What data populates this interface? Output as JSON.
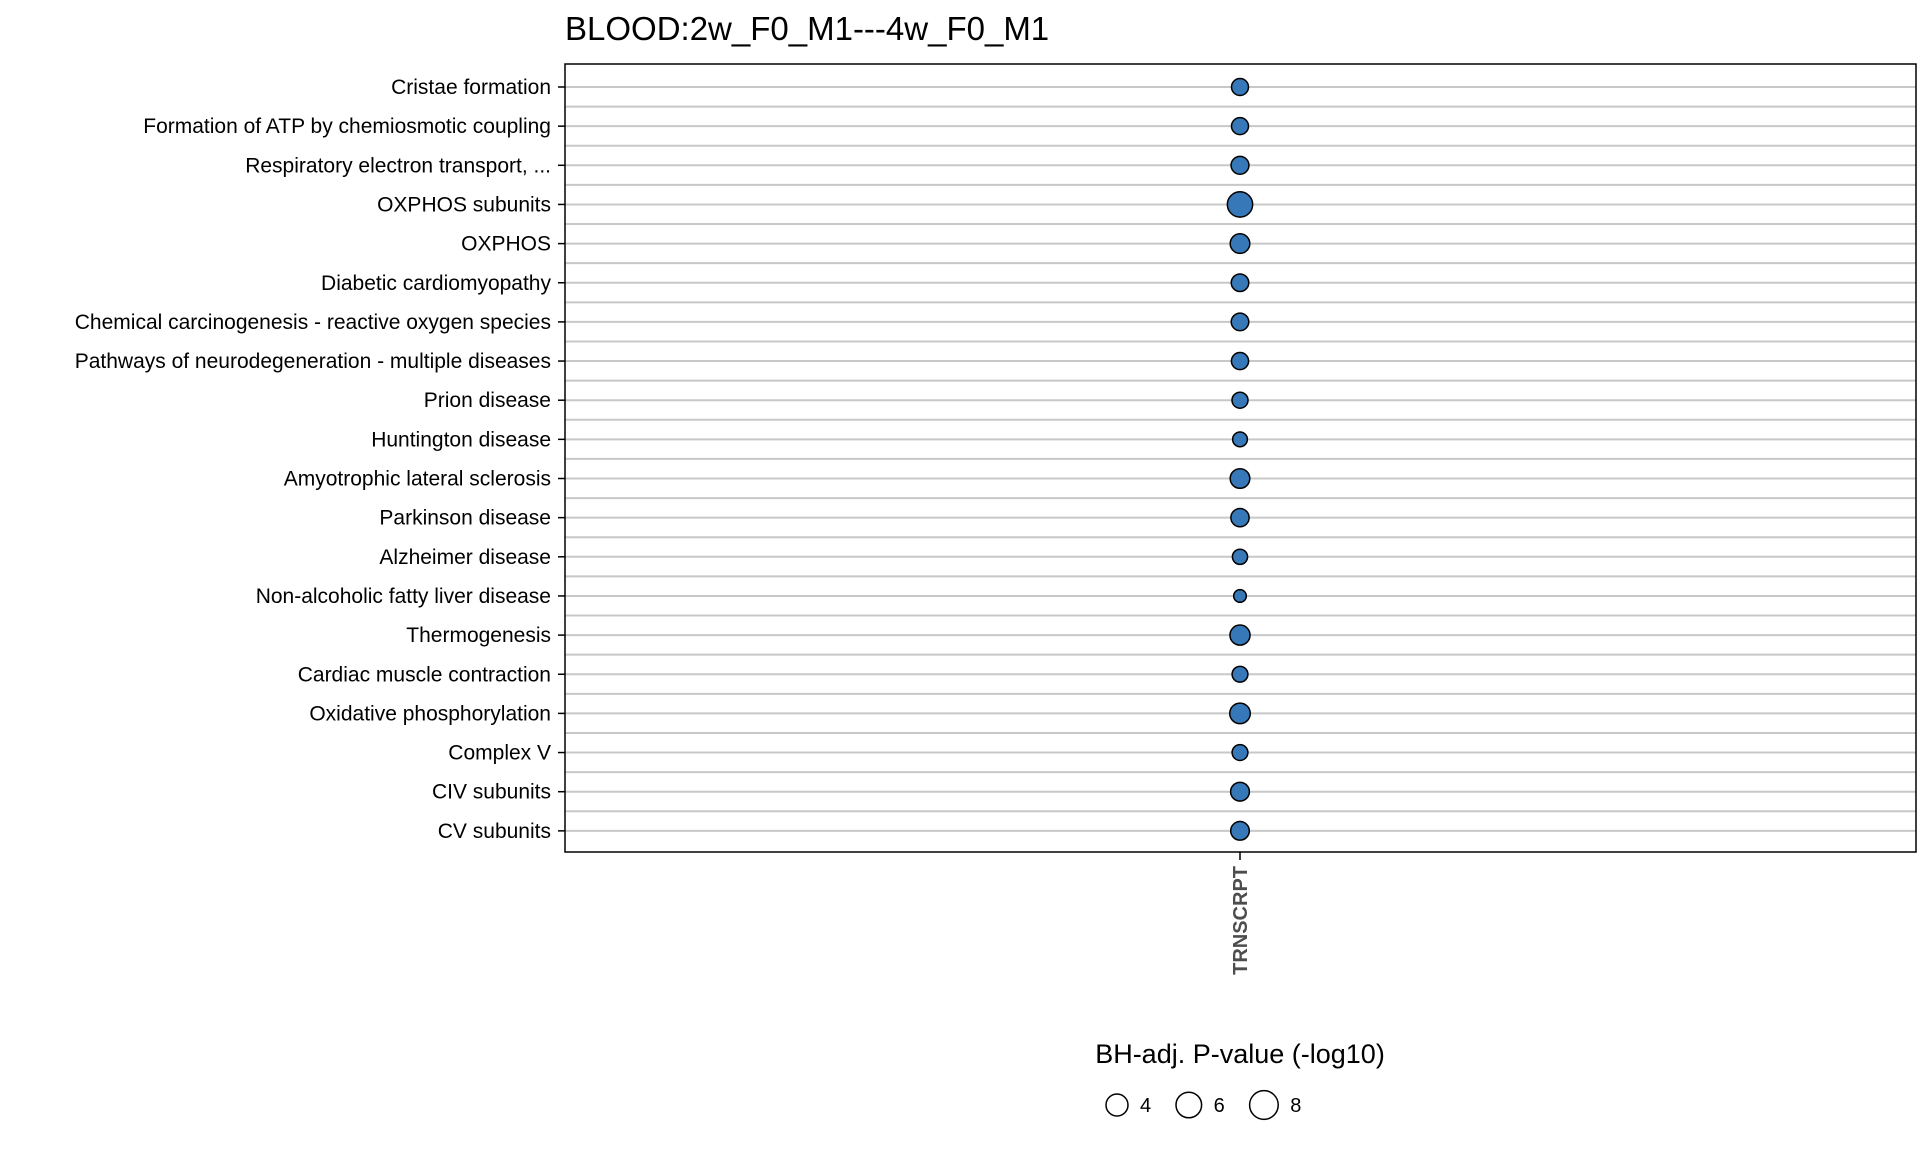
{
  "chart_data": {
    "type": "scatter",
    "title": "BLOOD:2w_F0_M1---4w_F0_M1",
    "x_categories": [
      "TRNSCRPT"
    ],
    "y_categories": [
      "Cristae formation",
      "Formation of ATP by chemiosmotic coupling",
      "Respiratory electron transport, ...",
      "OXPHOS subunits",
      "OXPHOS",
      "Diabetic cardiomyopathy",
      "Chemical carcinogenesis - reactive oxygen species",
      "Pathways of neurodegeneration - multiple diseases",
      "Prion disease",
      "Huntington disease",
      "Amyotrophic lateral sclerosis",
      "Parkinson disease",
      "Alzheimer disease",
      "Non-alcoholic fatty liver disease",
      "Thermogenesis",
      "Cardiac muscle contraction",
      "Oxidative phosphorylation",
      "Complex V",
      "CIV subunits",
      "CV subunits"
    ],
    "size_metric": "BH-adj. P-value (-log10)",
    "points": [
      {
        "x": "TRNSCRPT",
        "y": "Cristae formation",
        "size": 4.5
      },
      {
        "x": "TRNSCRPT",
        "y": "Formation of ATP by chemiosmotic coupling",
        "size": 4.5
      },
      {
        "x": "TRNSCRPT",
        "y": "Respiratory electron transport, ...",
        "size": 5.0
      },
      {
        "x": "TRNSCRPT",
        "y": "OXPHOS subunits",
        "size": 10.0
      },
      {
        "x": "TRNSCRPT",
        "y": "OXPHOS",
        "size": 6.0
      },
      {
        "x": "TRNSCRPT",
        "y": "Diabetic cardiomyopathy",
        "size": 4.8
      },
      {
        "x": "TRNSCRPT",
        "y": "Chemical carcinogenesis - reactive oxygen species",
        "size": 4.8
      },
      {
        "x": "TRNSCRPT",
        "y": "Pathways of neurodegeneration - multiple diseases",
        "size": 4.6
      },
      {
        "x": "TRNSCRPT",
        "y": "Prion disease",
        "size": 4.0
      },
      {
        "x": "TRNSCRPT",
        "y": "Huntington disease",
        "size": 3.4
      },
      {
        "x": "TRNSCRPT",
        "y": "Amyotrophic lateral sclerosis",
        "size": 6.0
      },
      {
        "x": "TRNSCRPT",
        "y": "Parkinson disease",
        "size": 5.2
      },
      {
        "x": "TRNSCRPT",
        "y": "Alzheimer disease",
        "size": 3.6
      },
      {
        "x": "TRNSCRPT",
        "y": "Non-alcoholic fatty liver disease",
        "size": 2.5
      },
      {
        "x": "TRNSCRPT",
        "y": "Thermogenesis",
        "size": 6.3
      },
      {
        "x": "TRNSCRPT",
        "y": "Cardiac muscle contraction",
        "size": 3.9
      },
      {
        "x": "TRNSCRPT",
        "y": "Oxidative phosphorylation",
        "size": 6.6
      },
      {
        "x": "TRNSCRPT",
        "y": "Complex V",
        "size": 3.9
      },
      {
        "x": "TRNSCRPT",
        "y": "CIV subunits",
        "size": 5.5
      },
      {
        "x": "TRNSCRPT",
        "y": "CV subunits",
        "size": 5.4
      }
    ],
    "legend": {
      "title": "BH-adj. P-value (-log10)",
      "values": [
        4,
        6,
        8
      ],
      "position": "bottom"
    },
    "colors": {
      "point_fill": "#3778b8",
      "point_stroke": "#000000",
      "gridline": "#c8c8c8",
      "panel_border": "#000000"
    },
    "grid": "horizontal"
  }
}
